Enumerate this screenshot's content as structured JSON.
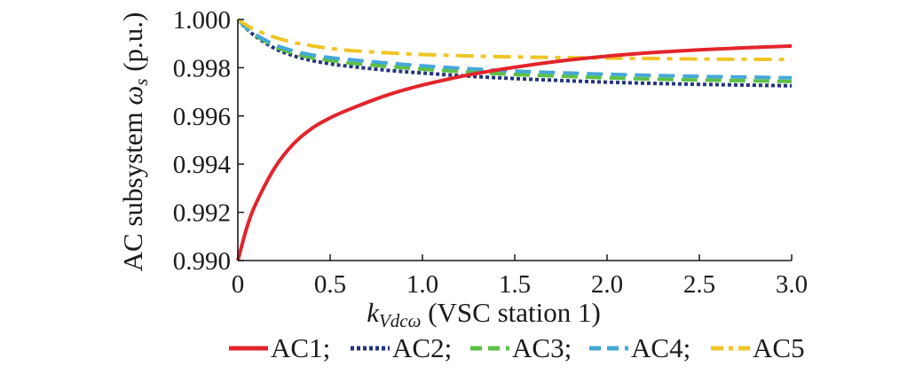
{
  "chart_data": {
    "type": "line",
    "title": "",
    "ylabel_main": "AC subsystem ",
    "ylabel_symbol": "ω",
    "ylabel_subscript": "s",
    "ylabel_unit": " (p.u.)",
    "xlabel_symbol": "k",
    "xlabel_subscript": "Vdcω",
    "xlabel_rest": " (VSC station 1)",
    "xlim": [
      0,
      3.0
    ],
    "ylim": [
      0.99,
      1.0
    ],
    "x_ticks": [
      0,
      0.5,
      1.0,
      1.5,
      2.0,
      2.5,
      3.0
    ],
    "x_tick_labels": [
      "0",
      "0.5",
      "1.0",
      "1.5",
      "2.0",
      "2.5",
      "3.0"
    ],
    "y_ticks": [
      0.99,
      0.992,
      0.994,
      0.996,
      0.998,
      1.0
    ],
    "y_tick_labels": [
      "0.990",
      "0.992",
      "0.994",
      "0.996",
      "0.998",
      "1.000"
    ],
    "grid": false,
    "legend_position": "bottom",
    "x": [
      0,
      0.05,
      0.1,
      0.2,
      0.3,
      0.4,
      0.5,
      0.6,
      0.8,
      1.0,
      1.25,
      1.5,
      1.75,
      2.0,
      2.25,
      2.5,
      2.75,
      3.0
    ],
    "series": [
      {
        "name": "AC1;",
        "color": "#e3242b",
        "style": "solid",
        "values": [
          0.99,
          0.9914,
          0.9924,
          0.99385,
          0.99483,
          0.99548,
          0.99592,
          0.99626,
          0.99684,
          0.99728,
          0.9977,
          0.99802,
          0.99828,
          0.99848,
          0.99863,
          0.99874,
          0.99883,
          0.9989
        ]
      },
      {
        "name": "AC2;",
        "color": "#23357f",
        "style": "dotted",
        "values": [
          1.0,
          0.9996,
          0.99928,
          0.9988,
          0.9985,
          0.9983,
          0.99816,
          0.99806,
          0.9979,
          0.99778,
          0.99765,
          0.99755,
          0.99747,
          0.9974,
          0.99735,
          0.99731,
          0.99728,
          0.99725
        ]
      },
      {
        "name": "AC3;",
        "color": "#5cc046",
        "style": "dashed",
        "values": [
          1.0,
          0.99962,
          0.99932,
          0.99888,
          0.9986,
          0.99842,
          0.9983,
          0.9982,
          0.99806,
          0.99794,
          0.99782,
          0.99772,
          0.99765,
          0.99758,
          0.99753,
          0.99749,
          0.99746,
          0.99743
        ]
      },
      {
        "name": "AC4;",
        "color": "#45a7d8",
        "style": "dashed",
        "values": [
          1.0,
          0.99964,
          0.99936,
          0.99895,
          0.9987,
          0.99853,
          0.99842,
          0.99834,
          0.9982,
          0.99808,
          0.99796,
          0.99786,
          0.99779,
          0.99773,
          0.99768,
          0.99764,
          0.99761,
          0.99758
        ]
      },
      {
        "name": "AC5",
        "color": "#efc526",
        "style": "dashdot",
        "values": [
          1.0,
          0.99975,
          0.99955,
          0.99926,
          0.99905,
          0.99891,
          0.9988,
          0.99872,
          0.99862,
          0.99855,
          0.99849,
          0.99845,
          0.99842,
          0.9984,
          0.99838,
          0.99836,
          0.99835,
          0.99834
        ]
      }
    ]
  }
}
